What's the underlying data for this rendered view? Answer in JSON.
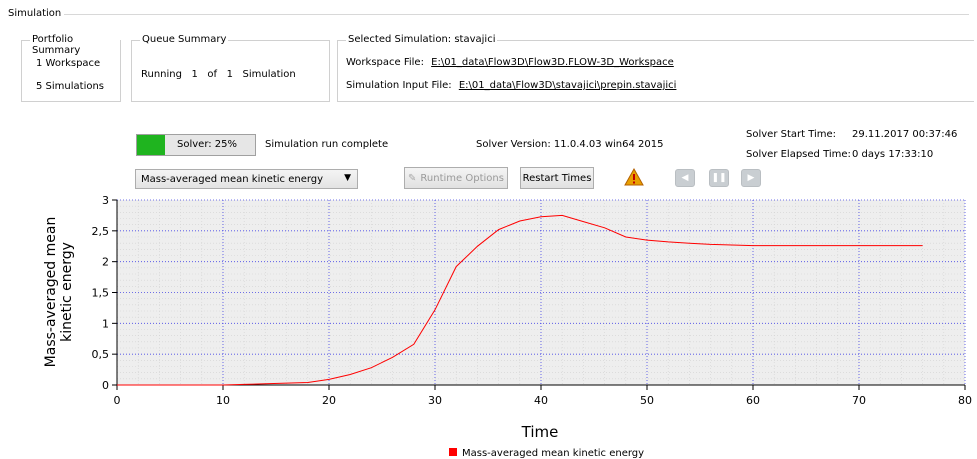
{
  "simulation_label": "Simulation",
  "portfolio": {
    "legend": "Portfolio Summary",
    "workspaces": "1  Workspace",
    "simulations": "5  Simulations"
  },
  "queue": {
    "legend": "Queue Summary",
    "status": "Running   1   of   1   Simulation"
  },
  "selected": {
    "legend": "Selected Simulation: stavajici",
    "workspace_label": "Workspace File:",
    "workspace_path": "E:\\01_data\\Flow3D\\Flow3D.FLOW-3D_Workspace",
    "input_label": "Simulation Input File:",
    "input_path": "E:\\01_data\\Flow3D\\stavajici\\prepin.stavajici"
  },
  "solver": {
    "progress_label": "Solver: 25%",
    "progress": 0.25,
    "status": "Simulation run complete",
    "version": "Solver Version: 11.0.4.03 win64 2015",
    "start_label": "Solver Start Time:",
    "start_value": "29.11.2017 00:37:46",
    "elapsed_label": "Solver Elapsed Time:",
    "elapsed_value": "0 days 17:33:10"
  },
  "toolbar": {
    "dropdown_value": "Mass-averaged mean kinetic energy",
    "runtime_options": "Runtime Options",
    "restart_times": "Restart Times",
    "warning_color": "#e8a000"
  },
  "chart_data": {
    "type": "line",
    "title": "",
    "xlabel": "Time",
    "ylabel_lines": [
      "Mass-averaged mean",
      "kinetic energy"
    ],
    "xlim": [
      0,
      80
    ],
    "ylim": [
      0,
      3
    ],
    "xticks": [
      "0",
      "10",
      "20",
      "30",
      "40",
      "50",
      "60",
      "70",
      "80"
    ],
    "yticks": [
      "0",
      "0,5",
      "1",
      "1,5",
      "2",
      "2,5",
      "3"
    ],
    "grid": true,
    "legend_position": "bottom",
    "series": [
      {
        "name": "Mass-averaged mean kinetic energy",
        "color": "#ff0000",
        "x": [
          0,
          5,
          10,
          12,
          14,
          16,
          18,
          20,
          22,
          24,
          26,
          28,
          30,
          32,
          34,
          36,
          38,
          40,
          42,
          44,
          46,
          48,
          50,
          52,
          54,
          56,
          58,
          60,
          65,
          70,
          76
        ],
        "y": [
          0.0,
          0.0,
          0.0,
          0.01,
          0.02,
          0.03,
          0.04,
          0.09,
          0.17,
          0.28,
          0.45,
          0.66,
          1.22,
          1.92,
          2.25,
          2.52,
          2.66,
          2.73,
          2.75,
          2.65,
          2.55,
          2.4,
          2.35,
          2.32,
          2.3,
          2.28,
          2.27,
          2.26,
          2.26,
          2.26,
          2.26
        ]
      }
    ]
  }
}
